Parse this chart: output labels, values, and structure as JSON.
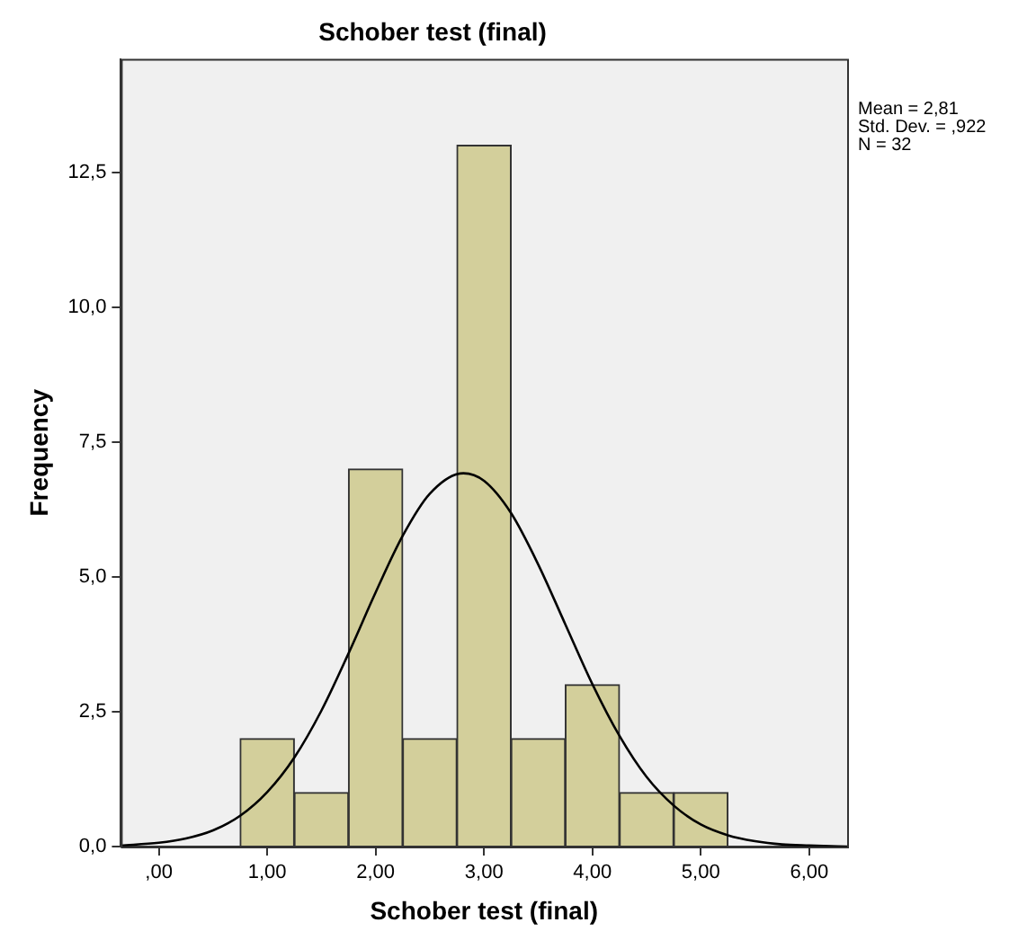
{
  "chart_data": {
    "type": "histogram",
    "title": "Schober test (final)",
    "xlabel": "Schober test (final)",
    "ylabel": "Frequency",
    "bins": [
      0.75,
      1.25,
      1.75,
      2.25,
      2.75,
      3.25,
      3.75,
      4.25,
      4.75,
      5.25
    ],
    "values": [
      2,
      1,
      7,
      2,
      13,
      2,
      3,
      1,
      1
    ],
    "color": "#d3cf9b",
    "series": [
      {
        "type": "line",
        "color": "#000000",
        "x": [
          -0.35,
          0,
          0.25,
          0.5,
          0.75,
          1,
          1.25,
          1.5,
          1.75,
          2,
          2.25,
          2.5,
          2.81,
          3,
          3.25,
          3.5,
          3.75,
          4,
          4.25,
          4.5,
          4.75,
          5,
          5.25,
          5.5,
          5.75,
          6,
          6.35
        ],
        "values": [
          0.02,
          0.07,
          0.15,
          0.3,
          0.57,
          1.01,
          1.65,
          2.52,
          3.58,
          4.71,
          5.76,
          6.54,
          6.92,
          6.78,
          6.18,
          5.23,
          4.12,
          3.01,
          2.05,
          1.29,
          0.76,
          0.41,
          0.21,
          0.1,
          0.04,
          0.02,
          0
        ]
      }
    ],
    "xlim": [
      -0.35,
      6.35
    ],
    "xticks": [
      {
        "value": 0,
        "label": ",00"
      },
      {
        "value": 1,
        "label": "1,00"
      },
      {
        "value": 2,
        "label": "2,00"
      },
      {
        "value": 3,
        "label": "3,00"
      },
      {
        "value": 4,
        "label": "4,00"
      },
      {
        "value": 5,
        "label": "5,00"
      },
      {
        "value": 6,
        "label": "6,00"
      }
    ],
    "ylim": [
      0,
      14.6
    ],
    "yticks": [
      {
        "value": 0,
        "label": "0,0"
      },
      {
        "value": 2.5,
        "label": "2,5"
      },
      {
        "value": 5,
        "label": "5,0"
      },
      {
        "value": 7.5,
        "label": "7,5"
      },
      {
        "value": 10,
        "label": "10,0"
      },
      {
        "value": 12.5,
        "label": "12,5"
      }
    ],
    "annotations": [
      "Mean = 2,81",
      "Std. Dev. = ,922",
      "N = 32"
    ],
    "grid": false,
    "legend": false,
    "marker": "none",
    "line_style": "solid"
  }
}
